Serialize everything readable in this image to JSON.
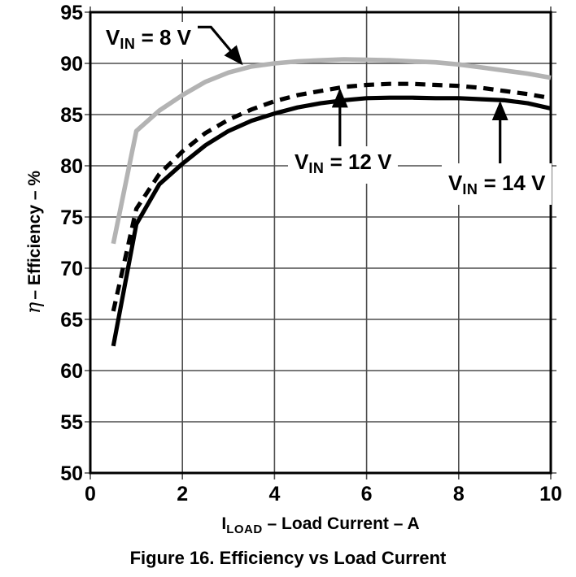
{
  "figure": {
    "caption": "Figure 16. Efficiency vs Load Current",
    "background": "#ffffff"
  },
  "colors": {
    "curve_gray": "#b3b3b3",
    "curve_black": "#000000",
    "grid_line": "#4d4d4d",
    "plot_border": "#000000",
    "text": "#000000"
  },
  "chart_data": {
    "type": "line",
    "title": "Figure 16. Efficiency vs Load Current",
    "xlabel": "ILOAD – Load Current – A",
    "xlabel_parts": {
      "main": "I",
      "sub": "LOAD",
      "rest": " – Load Current – A"
    },
    "ylabel": "η – Efficiency – %",
    "ylabel_parts": {
      "symbol": "η",
      "rest": "– Efficiency – %"
    },
    "xlim": [
      0,
      10
    ],
    "ylim": [
      50,
      95
    ],
    "x_ticks": [
      0,
      2,
      4,
      6,
      8,
      10
    ],
    "y_ticks": [
      50,
      55,
      60,
      65,
      70,
      75,
      80,
      85,
      90,
      95
    ],
    "grid": true,
    "legend_position": "none",
    "x": [
      0.5,
      1,
      1.5,
      2,
      2.5,
      3,
      3.5,
      4,
      4.5,
      5,
      5.5,
      6,
      6.5,
      7,
      7.5,
      8,
      8.5,
      9,
      9.5,
      10
    ],
    "series": [
      {
        "name": "VIN = 8 V",
        "color": "#b3b3b3",
        "line_style": "solid",
        "values": [
          72.4,
          83.4,
          85.4,
          86.9,
          88.2,
          89.1,
          89.7,
          90.0,
          90.2,
          90.3,
          90.4,
          90.35,
          90.3,
          90.2,
          90.1,
          89.9,
          89.6,
          89.3,
          89.0,
          88.6
        ]
      },
      {
        "name": "VIN = 12 V",
        "color": "#000000",
        "line_style": "dashed",
        "values": [
          65.8,
          75.8,
          79.2,
          81.4,
          83.2,
          84.5,
          85.5,
          86.3,
          86.9,
          87.3,
          87.7,
          87.9,
          88.0,
          88.0,
          87.9,
          87.8,
          87.6,
          87.3,
          87.0,
          86.6
        ]
      },
      {
        "name": "VIN = 14 V",
        "color": "#000000",
        "line_style": "solid",
        "values": [
          62.4,
          74.3,
          78.2,
          80.2,
          82.0,
          83.4,
          84.4,
          85.1,
          85.7,
          86.1,
          86.4,
          86.6,
          86.65,
          86.65,
          86.6,
          86.6,
          86.5,
          86.4,
          86.1,
          85.6
        ]
      }
    ],
    "annotations": [
      {
        "label_pre": "V",
        "label_sub": "IN",
        "label_rest": " = 8 V",
        "target_series": "VIN = 8 V",
        "arrow_points_data": [
          [
            2.17,
            93.55
          ],
          [
            2.62,
            93.55
          ],
          [
            3.28,
            90.0
          ]
        ]
      },
      {
        "label_pre": "V",
        "label_sub": "IN",
        "label_rest": " = 12 V",
        "target_series": "VIN = 12 V",
        "arrow_points_data": [
          [
            5.42,
            81.9
          ],
          [
            5.42,
            87.35
          ]
        ]
      },
      {
        "label_pre": "V",
        "label_sub": "IN",
        "label_rest": " = 14 V",
        "target_series": "VIN = 14 V",
        "arrow_points_data": [
          [
            8.9,
            80.2
          ],
          [
            8.9,
            86.1
          ]
        ]
      }
    ]
  }
}
